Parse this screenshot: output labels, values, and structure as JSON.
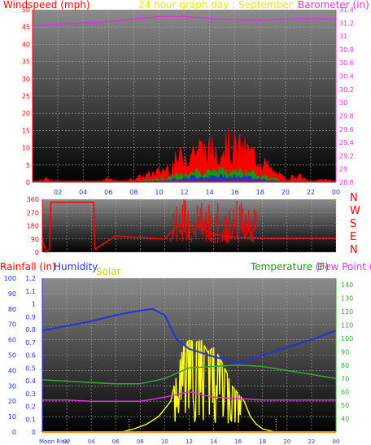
{
  "colors": {
    "wind": "#ff0000",
    "gust_green": "#119911",
    "gust_blue": "#2233cc",
    "barometer": "#dd33dd",
    "title": "#e8e800",
    "direction": "#ff0000",
    "humidity": "#2233dd",
    "temperature": "#33aa33",
    "dewpoint": "#dd33dd",
    "solar": "#ffff22",
    "rain": "#ff8800",
    "bg_top": "#8c8c8c",
    "bg_bottom": "#000000"
  },
  "chart_data": [
    {
      "type": "line",
      "id": "wind_baro",
      "title": "24 hour graph day : September 1",
      "ylabel": "Windspeed (mph)",
      "y2label": "Barometer (in)",
      "ylim": [
        0,
        50
      ],
      "y2lim": [
        28.8,
        31.4
      ],
      "yticks": [
        "0",
        "5",
        "10",
        "15",
        "20",
        "25",
        "30",
        "35",
        "40",
        "45",
        "50"
      ],
      "y2ticks": [
        "28.8",
        "29",
        "29.2",
        "29.4",
        "29.6",
        "29.8",
        "30",
        "30.2",
        "30.4",
        "30.6",
        "30.8",
        "31",
        "31.2",
        "31.4"
      ],
      "xlim": [
        0,
        24
      ],
      "xticks": [
        "02",
        "04",
        "06",
        "08",
        "10",
        "12",
        "14",
        "16",
        "18",
        "20",
        "22",
        "00"
      ],
      "grid": true,
      "series": [
        {
          "key": "barometer",
          "axis": "y2",
          "x": [
            0,
            2,
            4,
            6,
            8,
            10,
            12,
            14,
            16,
            18,
            20,
            22,
            24
          ],
          "values": [
            31.16,
            31.18,
            31.2,
            31.22,
            31.26,
            31.3,
            31.3,
            31.27,
            31.25,
            31.24,
            31.26,
            31.27,
            31.26
          ]
        },
        {
          "key": "wind",
          "axis": "y",
          "x": [
            0,
            1,
            2,
            3,
            4,
            5,
            6,
            7,
            8,
            9,
            10,
            11,
            12,
            13,
            14,
            15,
            16,
            17,
            18,
            19,
            20,
            21,
            22,
            23,
            24
          ],
          "values": [
            0,
            1,
            0,
            0,
            0,
            0,
            1,
            0,
            1,
            2,
            3,
            5,
            8,
            10,
            9,
            11,
            10,
            9,
            7,
            3,
            1,
            2,
            0,
            1,
            0
          ]
        }
      ]
    },
    {
      "type": "line",
      "id": "wind_direction",
      "ylim": [
        0,
        360
      ],
      "yticks": [
        "0",
        "90",
        "180",
        "270",
        "360"
      ],
      "compass": [
        "N",
        "W",
        "S",
        "E",
        "N"
      ],
      "xlim": [
        0,
        24
      ],
      "series": [
        {
          "key": "direction",
          "axis": "y",
          "x": [
            0,
            0.3,
            0.6,
            0.7,
            4.2,
            4.3,
            6,
            7,
            8,
            9,
            10,
            11,
            12,
            13,
            14,
            15,
            16,
            17,
            18,
            19,
            20,
            22,
            24
          ],
          "values": [
            90,
            0,
            20,
            340,
            340,
            20,
            110,
            105,
            100,
            95,
            90,
            180,
            200,
            160,
            120,
            110,
            100,
            100,
            95,
            95,
            95,
            95,
            95
          ]
        }
      ]
    },
    {
      "type": "line",
      "id": "temp_hum",
      "ylabel": "Rainfall (in)",
      "ylabel2": "Humidity",
      "ylabel3": "Solar",
      "y2label": "Temperature (F)",
      "y2label2": "Dew Point (",
      "ylim_humidity": [
        0,
        100
      ],
      "ylim_rain": [
        0,
        1.2
      ],
      "y2lim": [
        30,
        145
      ],
      "yticks_humidity": [
        "0",
        "10",
        "20",
        "30",
        "40",
        "50",
        "60",
        "70",
        "80",
        "90",
        "100"
      ],
      "yticks_rain": [
        "0",
        "0.1",
        "0.2",
        "0.3",
        "0.4",
        "0.5",
        "0.6",
        "0.7",
        "0.8",
        "0.9",
        "1",
        "1.1",
        "1.2"
      ],
      "y2ticks": [
        "40",
        "50",
        "60",
        "70",
        "80",
        "90",
        "100",
        "110",
        "120",
        "130",
        "140"
      ],
      "xlim": [
        0,
        24
      ],
      "xticks": [
        "Moon Rise",
        "02",
        "04",
        "06",
        "08",
        "10",
        "12",
        "14",
        "16",
        "18",
        "20",
        "22",
        "00"
      ],
      "series": [
        {
          "key": "humidity",
          "axis": "hum",
          "x": [
            0,
            2,
            4,
            6,
            8,
            9,
            10,
            11,
            12,
            14,
            16,
            18,
            20,
            22,
            24
          ],
          "values": [
            66,
            69,
            72,
            76,
            79,
            80,
            76,
            60,
            54,
            49,
            45,
            50,
            55,
            60,
            66
          ]
        },
        {
          "key": "temperature",
          "axis": "y2",
          "x": [
            0,
            2,
            4,
            6,
            8,
            10,
            12,
            14,
            16,
            18,
            20,
            22,
            24
          ],
          "values": [
            69,
            68,
            67,
            66,
            66,
            70,
            78,
            79,
            80,
            79,
            76,
            73,
            70
          ]
        },
        {
          "key": "dewpoint",
          "axis": "y2",
          "x": [
            0,
            2,
            4,
            6,
            8,
            10,
            12,
            14,
            16,
            18,
            20,
            22,
            24
          ],
          "values": [
            54,
            54,
            53,
            53,
            53,
            56,
            60,
            56,
            55,
            54,
            54,
            54,
            54
          ]
        },
        {
          "key": "solar",
          "axis": "hum",
          "x": [
            0,
            6.5,
            7.5,
            8.5,
            9.5,
            10.5,
            11,
            11.5,
            12,
            12.5,
            13,
            13.5,
            14,
            14.5,
            15,
            15.5,
            16,
            16.5,
            17,
            17.5,
            18,
            19,
            24
          ],
          "values": [
            0,
            0,
            2,
            5,
            10,
            20,
            38,
            55,
            60,
            58,
            60,
            52,
            55,
            48,
            40,
            30,
            25,
            20,
            10,
            5,
            2,
            0,
            0
          ]
        },
        {
          "key": "rain",
          "axis": "rain",
          "x": [
            0,
            24
          ],
          "values": [
            0,
            0
          ]
        }
      ]
    }
  ]
}
